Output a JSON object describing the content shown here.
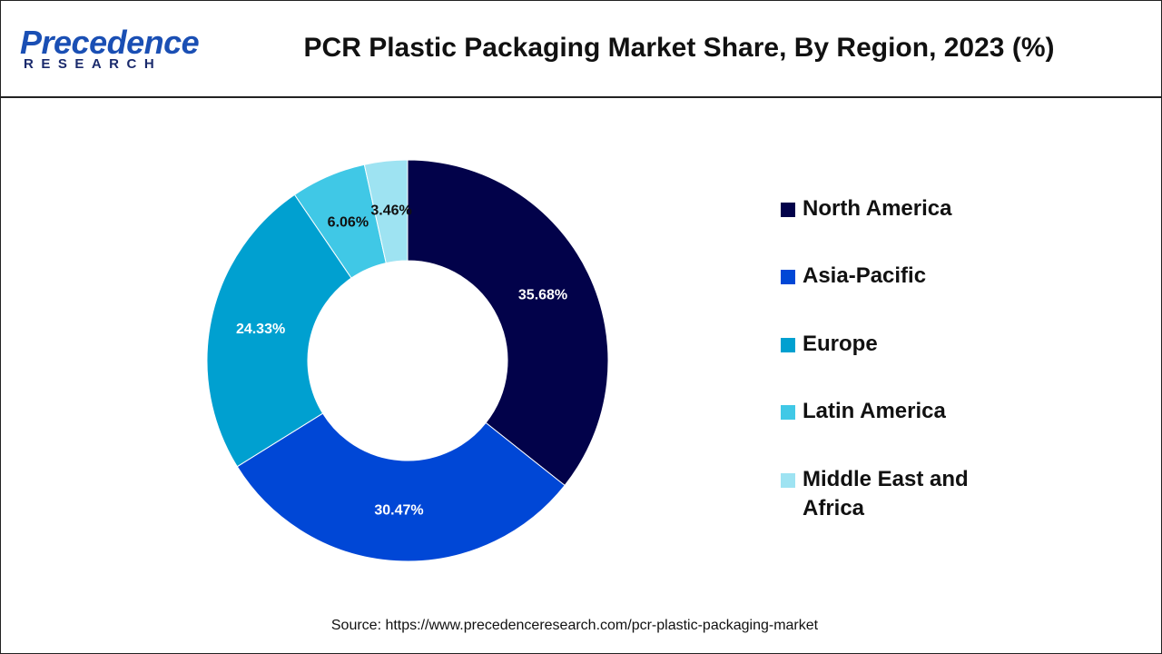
{
  "header": {
    "logo": {
      "name": "Precedence",
      "tagline": "RESEARCH"
    }
  },
  "chart_data": {
    "type": "donut",
    "title": "PCR Plastic Packaging Market Share, By Region, 2023 (%)",
    "categories": [
      "North America",
      "Asia-Pacific",
      "Europe",
      "Latin America",
      "Middle East and Africa"
    ],
    "values": [
      35.68,
      30.47,
      24.33,
      6.06,
      3.46
    ],
    "value_labels": [
      "35.68%",
      "30.47%",
      "24.33%",
      "6.06%",
      "3.46%"
    ],
    "colors": [
      "#02024a",
      "#0047d6",
      "#00a0d0",
      "#40c8e6",
      "#9ee3f2"
    ],
    "legend": "right"
  },
  "source": "Source: https://www.precedenceresearch.com/pcr-plastic-packaging-market"
}
